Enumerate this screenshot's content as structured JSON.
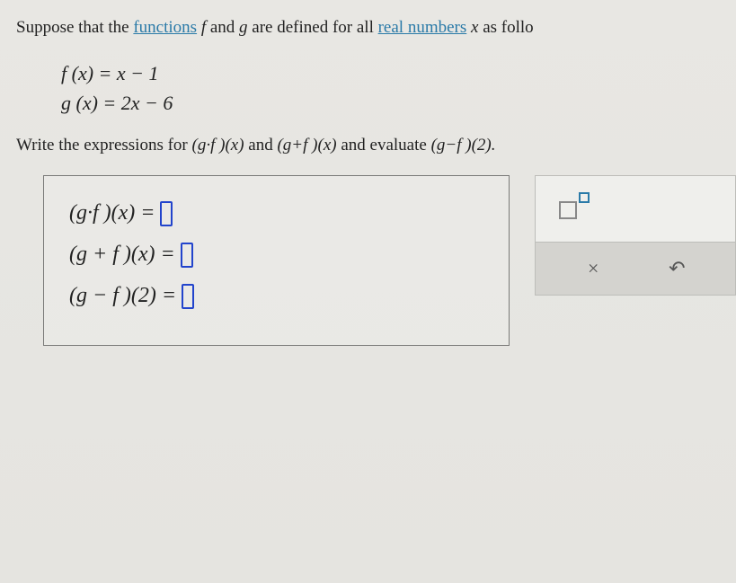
{
  "question": {
    "prefix": "Suppose that the ",
    "link1": "functions",
    "mid1": " ",
    "f": "f",
    "mid2": " and ",
    "g": "g",
    "mid3": " are defined for all ",
    "link2": "real numbers",
    "mid4": " ",
    "x": "x",
    "suffix": " as follo"
  },
  "definitions": {
    "fx": "f (x) = x − 1",
    "gx": "g (x) = 2x − 6"
  },
  "instruction": {
    "t1": "Write the expressions for ",
    "e1": "(g·f )(x)",
    "t2": " and ",
    "e2": "(g+f )(x)",
    "t3": " and evaluate ",
    "e3": "(g−f )(2).",
    "t4": ""
  },
  "answers": {
    "row1": "(g·f )(x) = ",
    "row2": "(g + f )(x) = ",
    "row3": "(g − f )(2) = "
  },
  "tools": {
    "close": "×",
    "undo": "↶"
  }
}
